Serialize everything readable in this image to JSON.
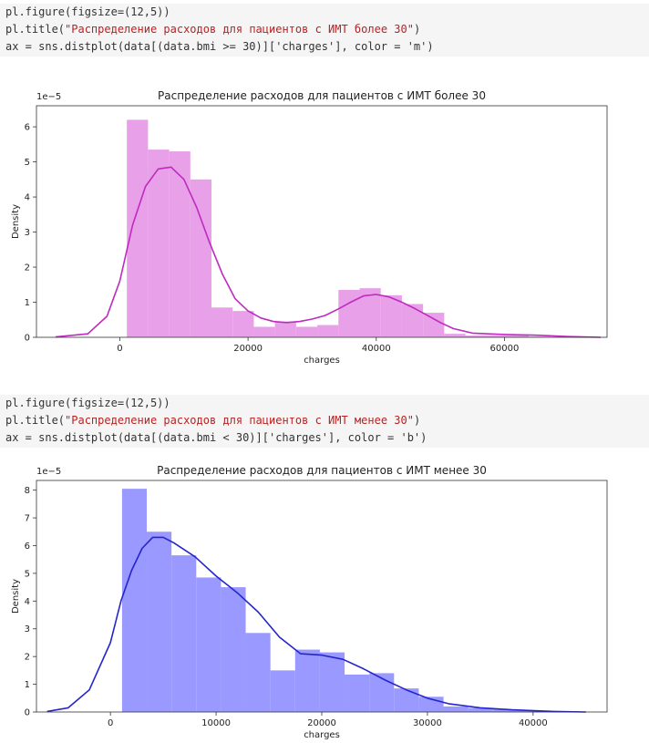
{
  "cells": [
    {
      "code": [
        [
          "pl.figure(figsize=(12,5))"
        ],
        [
          "pl.title(",
          "\"Распределение расходов для пациентов с ИМТ более 30\"",
          ")"
        ],
        [
          "ax = sns.distplot(data[(data.bmi >= 30)]['charges'], color = 'm')"
        ]
      ]
    },
    {
      "code": [
        [
          "pl.figure(figsize=(12,5))"
        ],
        [
          "pl.title(",
          "\"Распределение расходов для пациентов с ИМТ менее 30\"",
          ")"
        ],
        [
          "ax = sns.distplot(data[(data.bmi < 30)]['charges'], color = 'b')"
        ]
      ]
    }
  ],
  "chart_data": [
    {
      "type": "bar",
      "title": "Распределение расходов для пациентов с ИМТ более 30",
      "xlabel": "charges",
      "ylabel": "Density",
      "scale_label": "1e−5",
      "xlim": [
        -13000,
        76000
      ],
      "ylim": [
        0,
        6.6
      ],
      "xticks": [
        0,
        20000,
        40000,
        60000
      ],
      "xtick_labels": [
        "0",
        "20000",
        "40000",
        "60000"
      ],
      "yticks": [
        0,
        1,
        2,
        3,
        4,
        5,
        6
      ],
      "ytick_labels": [
        "0",
        "1",
        "2",
        "3",
        "4",
        "5",
        "6"
      ],
      "bins": {
        "start": 1100,
        "width": 3300,
        "values": [
          6.2,
          5.35,
          5.3,
          4.5,
          0.85,
          0.75,
          0.3,
          0.45,
          0.3,
          0.35,
          1.35,
          1.4,
          1.2,
          0.95,
          0.7,
          0.1,
          0.05,
          0.05,
          0.05,
          0.02
        ]
      },
      "kde": {
        "x": [
          -10000,
          -5000,
          -2000,
          0,
          2000,
          4000,
          6000,
          8000,
          10000,
          12000,
          14000,
          16000,
          18000,
          20000,
          22000,
          24000,
          26000,
          28000,
          30000,
          32000,
          34000,
          36000,
          38000,
          40000,
          42000,
          44000,
          46000,
          48000,
          50000,
          52000,
          55000,
          60000,
          65000,
          70000,
          75000
        ],
        "y": [
          0.01,
          0.1,
          0.6,
          1.6,
          3.2,
          4.3,
          4.8,
          4.85,
          4.5,
          3.7,
          2.7,
          1.8,
          1.1,
          0.75,
          0.55,
          0.45,
          0.42,
          0.45,
          0.52,
          0.62,
          0.8,
          1.0,
          1.18,
          1.22,
          1.15,
          1.0,
          0.82,
          0.62,
          0.42,
          0.25,
          0.12,
          0.08,
          0.06,
          0.02,
          0.0
        ]
      },
      "colors": {
        "bars": "#e8a0e8",
        "line": "#bf2abf"
      }
    },
    {
      "type": "bar",
      "title": "Распределение расходов для пациентов с ИМТ менее 30",
      "xlabel": "charges",
      "ylabel": "Density",
      "scale_label": "1e−5",
      "xlim": [
        -7000,
        47000
      ],
      "ylim": [
        0,
        8.35
      ],
      "xticks": [
        0,
        10000,
        20000,
        30000,
        40000
      ],
      "xtick_labels": [
        "0",
        "10000",
        "20000",
        "30000",
        "40000"
      ],
      "yticks": [
        0,
        1,
        2,
        3,
        4,
        5,
        6,
        7,
        8
      ],
      "ytick_labels": [
        "0",
        "1",
        "2",
        "3",
        "4",
        "5",
        "6",
        "7",
        "8"
      ],
      "bins": {
        "start": 1100,
        "width": 2340,
        "values": [
          8.05,
          6.5,
          5.65,
          4.85,
          4.5,
          2.85,
          1.5,
          2.25,
          2.15,
          1.35,
          1.4,
          0.85,
          0.55,
          0.2,
          0.15,
          0.1,
          0.05,
          0.02
        ]
      },
      "kde": {
        "x": [
          -6000,
          -4000,
          -2000,
          0,
          1000,
          2000,
          3000,
          4000,
          5000,
          6000,
          8000,
          10000,
          12000,
          14000,
          16000,
          18000,
          20000,
          22000,
          24000,
          26000,
          28000,
          30000,
          32000,
          35000,
          38000,
          42000,
          45000
        ],
        "y": [
          0.02,
          0.15,
          0.8,
          2.5,
          4.0,
          5.1,
          5.9,
          6.3,
          6.3,
          6.1,
          5.6,
          4.9,
          4.3,
          3.6,
          2.7,
          2.1,
          2.05,
          1.9,
          1.55,
          1.15,
          0.8,
          0.5,
          0.3,
          0.15,
          0.08,
          0.02,
          0.0
        ]
      },
      "colors": {
        "bars": "#9999ff",
        "line": "#2525cc"
      }
    }
  ]
}
